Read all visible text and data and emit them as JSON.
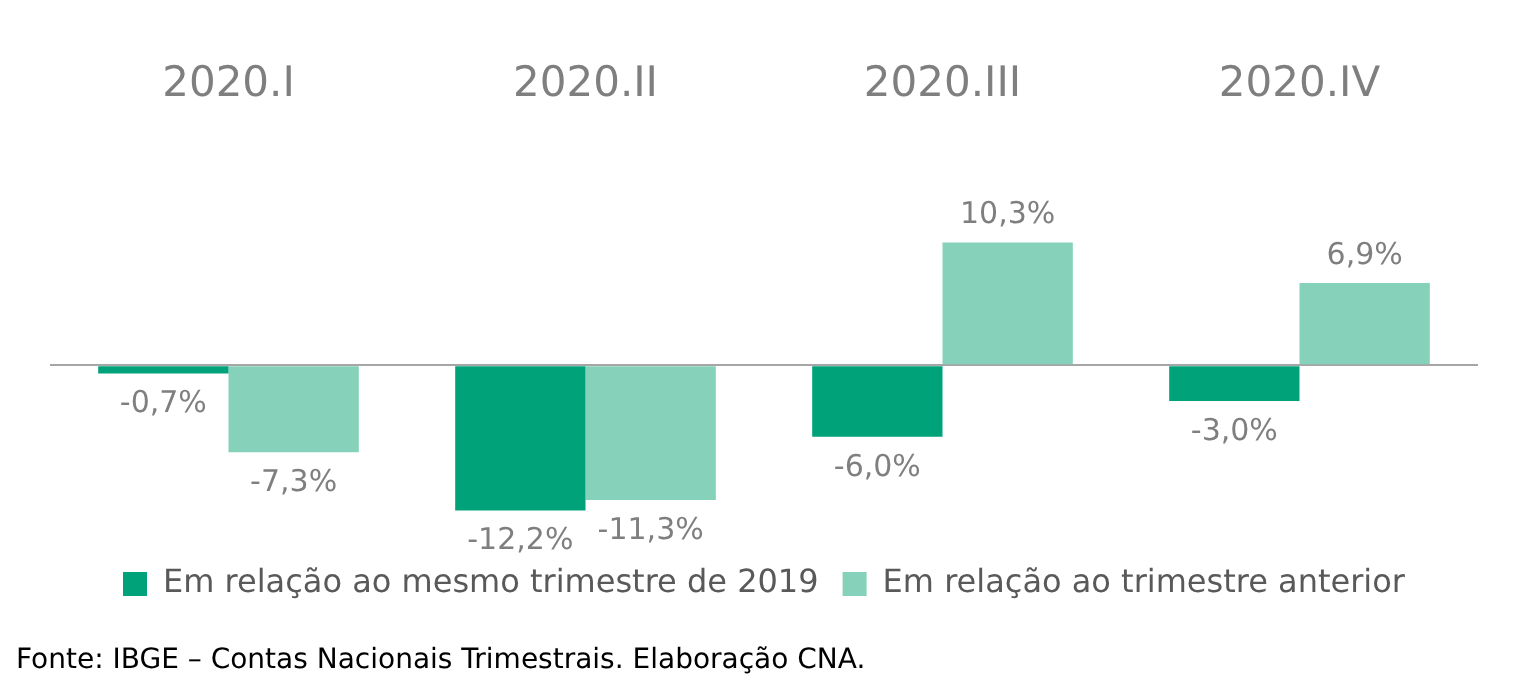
{
  "chart_data": {
    "type": "bar",
    "categories": [
      "2020.I",
      "2020.II",
      "2020.III",
      "2020.IV"
    ],
    "series": [
      {
        "name": "Em relação ao mesmo trimestre de 2019",
        "color": "#00a27a",
        "values": [
          -0.7,
          -12.2,
          -6.0,
          -3.0
        ],
        "value_labels": [
          "-0,7%",
          "-12,2%",
          "-6,0%",
          "-3,0%"
        ]
      },
      {
        "name": "Em relação ao trimestre anterior",
        "color": "#85d1b9",
        "values": [
          -7.3,
          -11.3,
          10.3,
          6.9
        ],
        "value_labels": [
          "-7,3%",
          "-11,3%",
          "10,3%",
          "6,9%"
        ]
      }
    ],
    "legend": "bottom",
    "annotations": [
      "Fonte: IBGE – Contas Nacionais Trimestrais. Elaboração CNA."
    ]
  }
}
